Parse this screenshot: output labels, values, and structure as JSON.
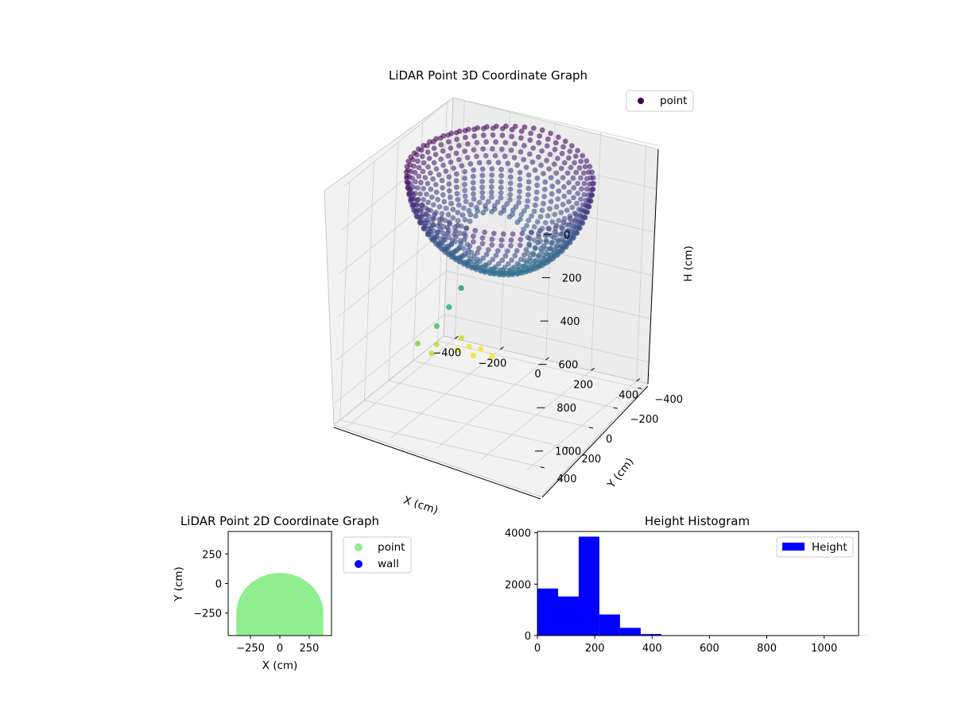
{
  "colors": {
    "scatter_colormap": "viridis",
    "point_2d": "#90ee90",
    "wall_2d": "#0000ff",
    "histogram": "#0000ff"
  },
  "chart_data": [
    {
      "type": "scatter",
      "title": "LiDAR Point 3D Coordinate Graph",
      "xlabel": "X (cm)",
      "ylabel": "Y (cm)",
      "zlabel": "H (cm)",
      "x_ticks": [
        "−400",
        "−200",
        "0",
        "200",
        "400"
      ],
      "y_ticks": [
        "−400",
        "−200",
        "0",
        "200",
        "400"
      ],
      "z_ticks": [
        "0",
        "200",
        "400",
        "600",
        "800",
        "1000"
      ],
      "xlim": [
        -450,
        450
      ],
      "ylim": [
        -450,
        450
      ],
      "zlim": [
        0,
        1100
      ],
      "z_inverted": true,
      "legend": [
        "point"
      ],
      "legend_position": "top-right",
      "grid": true,
      "shape": "dome-shaped point cloud (heights ~0-350 cm) with a few outlier points down to ~1000 cm",
      "outliers": [
        {
          "x": -150,
          "y": 0,
          "h": 600
        },
        {
          "x": -200,
          "y": 0,
          "h": 700
        },
        {
          "x": -250,
          "y": 0,
          "h": 800
        },
        {
          "x": -330,
          "y": 0,
          "h": 900
        },
        {
          "x": -330,
          "y": -120,
          "h": 1000
        },
        {
          "x": -350,
          "y": -200,
          "h": 1000
        },
        {
          "x": -300,
          "y": -280,
          "h": 1050
        },
        {
          "x": -240,
          "y": -300,
          "h": 1070
        },
        {
          "x": -310,
          "y": -330,
          "h": 1020
        },
        {
          "x": -300,
          "y": -380,
          "h": 1080
        },
        {
          "x": -260,
          "y": -400,
          "h": 1090
        },
        {
          "x": -200,
          "y": -380,
          "h": 1100
        }
      ]
    },
    {
      "type": "scatter",
      "title": "LiDAR Point 2D Coordinate Graph",
      "xlabel": "X (cm)",
      "ylabel": "Y (cm)",
      "x_ticks": [
        "−250",
        "0",
        "250"
      ],
      "y_ticks": [
        "250",
        "0",
        "−250"
      ],
      "xlim": [
        -440,
        440
      ],
      "ylim": [
        -440,
        440
      ],
      "series": [
        {
          "name": "point",
          "color": "#90ee90",
          "shape": "filled half-disc, x from −370 to 370, y from −440 up to ~90"
        },
        {
          "name": "wall",
          "color": "#0000ff",
          "values": []
        }
      ],
      "legend_position": "outside-right"
    },
    {
      "type": "bar",
      "title": "Height Histogram",
      "x_ticks": [
        "0",
        "200",
        "400",
        "600",
        "800",
        "1000"
      ],
      "y_ticks": [
        "0",
        "2000",
        "4000"
      ],
      "xlim": [
        0,
        1120
      ],
      "ylim": [
        0,
        4050
      ],
      "bin_width": 72,
      "bins": [
        0,
        72,
        144,
        216,
        288,
        360,
        432,
        504,
        576,
        648,
        720,
        792,
        864,
        936,
        1008,
        1080
      ],
      "values": [
        1830,
        1520,
        3850,
        820,
        300,
        60,
        3,
        0,
        0,
        2,
        1,
        2,
        0,
        3,
        2,
        4
      ],
      "series": [
        {
          "name": "Height",
          "color": "#0000ff"
        }
      ],
      "legend_position": "top-right"
    }
  ]
}
